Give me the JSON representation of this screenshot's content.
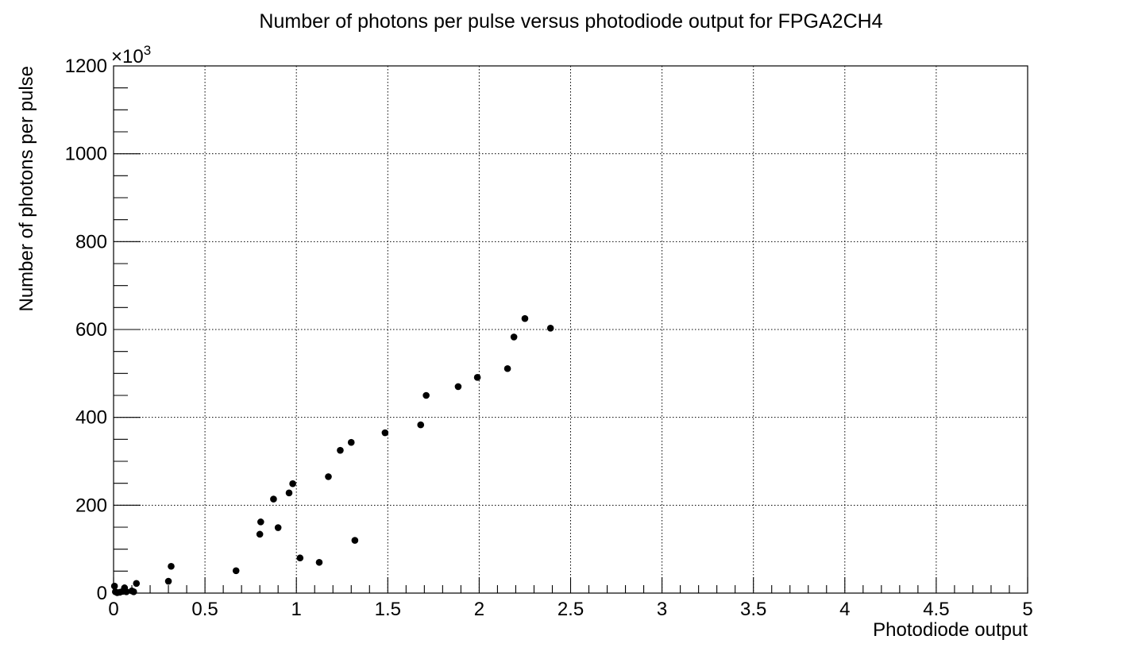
{
  "chart_data": {
    "type": "scatter",
    "title": "Number of photons per pulse versus photodiode output for FPGA2CH4",
    "xlabel": "Photodiode output",
    "ylabel": "Number of photons per pulse",
    "y_multiplier_label": "×10",
    "y_multiplier_exponent": "3",
    "xlim": [
      0,
      5
    ],
    "ylim": [
      0,
      1200
    ],
    "grid": true,
    "x_ticks": [
      "0",
      "0.5",
      "1",
      "1.5",
      "2",
      "2.5",
      "3",
      "3.5",
      "4",
      "4.5",
      "5"
    ],
    "y_ticks": [
      "0",
      "200",
      "400",
      "600",
      "800",
      "1000",
      "1200"
    ],
    "marker_color": "#000000",
    "points": [
      {
        "x": 0.005,
        "y": 16
      },
      {
        "x": 0.01,
        "y": 3
      },
      {
        "x": 0.02,
        "y": 1
      },
      {
        "x": 0.035,
        "y": 2
      },
      {
        "x": 0.05,
        "y": 4
      },
      {
        "x": 0.06,
        "y": 12
      },
      {
        "x": 0.07,
        "y": 3
      },
      {
        "x": 0.1,
        "y": 5
      },
      {
        "x": 0.11,
        "y": 3
      },
      {
        "x": 0.125,
        "y": 22
      },
      {
        "x": 0.3,
        "y": 27
      },
      {
        "x": 0.315,
        "y": 61
      },
      {
        "x": 0.67,
        "y": 51
      },
      {
        "x": 0.8,
        "y": 134
      },
      {
        "x": 0.805,
        "y": 162
      },
      {
        "x": 0.875,
        "y": 214
      },
      {
        "x": 0.9,
        "y": 149
      },
      {
        "x": 0.96,
        "y": 228
      },
      {
        "x": 0.98,
        "y": 249
      },
      {
        "x": 1.02,
        "y": 80
      },
      {
        "x": 1.125,
        "y": 70
      },
      {
        "x": 1.175,
        "y": 265
      },
      {
        "x": 1.24,
        "y": 325
      },
      {
        "x": 1.3,
        "y": 343
      },
      {
        "x": 1.32,
        "y": 120
      },
      {
        "x": 1.485,
        "y": 365
      },
      {
        "x": 1.68,
        "y": 383
      },
      {
        "x": 1.71,
        "y": 450
      },
      {
        "x": 1.885,
        "y": 470
      },
      {
        "x": 1.99,
        "y": 491
      },
      {
        "x": 2.155,
        "y": 511
      },
      {
        "x": 2.19,
        "y": 583
      },
      {
        "x": 2.25,
        "y": 625
      },
      {
        "x": 2.39,
        "y": 603
      }
    ]
  }
}
